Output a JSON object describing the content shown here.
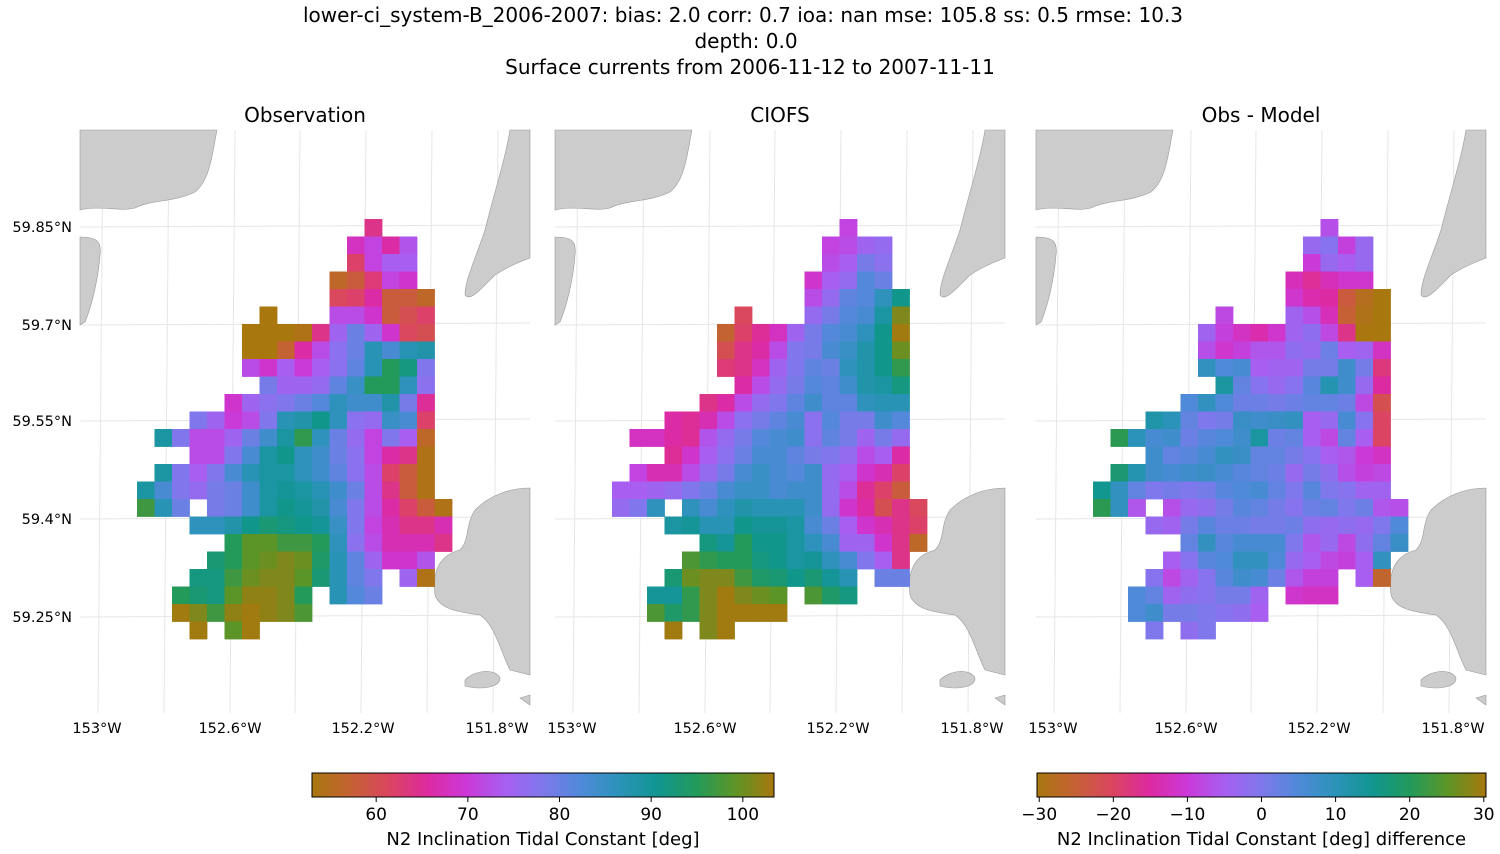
{
  "title": {
    "line1": "lower-ci_system-B_2006-2007: bias: 2.0  corr: 0.7  ioa: nan  mse: 105.8  ss: 0.5  rmse: 10.3",
    "line2": "depth: 0.0",
    "line3": "Surface currents from 2006-11-12 to 2007-11-11"
  },
  "chart_data": [
    {
      "type": "heatmap",
      "title": "Observation",
      "lon_ticks": [
        "153°W",
        "152.6°W",
        "152.2°W",
        "151.8°W"
      ],
      "lat_ticks": [
        "59.85°N",
        "59.7°N",
        "59.55°N",
        "59.4°N",
        "59.25°N"
      ],
      "colorbar": {
        "label": "N2 Inclination Tidal Constant [deg]",
        "ticks": [
          60,
          70,
          80,
          90,
          100
        ],
        "range": [
          53,
          103.4
        ]
      },
      "grid": [
        [
          null,
          null,
          null,
          null,
          null,
          null,
          null,
          null,
          null,
          null,
          null,
          null,
          null,
          64,
          null,
          null,
          null,
          null
        ],
        [
          null,
          null,
          null,
          null,
          null,
          null,
          null,
          null,
          null,
          null,
          null,
          null,
          68,
          71,
          66,
          73,
          null,
          null
        ],
        [
          null,
          null,
          null,
          null,
          null,
          null,
          null,
          null,
          null,
          null,
          null,
          null,
          62,
          71,
          74,
          74,
          null,
          null
        ],
        [
          null,
          null,
          null,
          null,
          null,
          null,
          null,
          null,
          null,
          null,
          null,
          56,
          58,
          63,
          71,
          69,
          null,
          null
        ],
        [
          null,
          null,
          null,
          null,
          null,
          null,
          null,
          null,
          null,
          null,
          null,
          61,
          62,
          66,
          58,
          58,
          56,
          null
        ],
        [
          null,
          null,
          null,
          null,
          null,
          null,
          null,
          53,
          null,
          null,
          null,
          72,
          72,
          69,
          58,
          60,
          62,
          null
        ],
        [
          null,
          null,
          null,
          null,
          null,
          null,
          53,
          53,
          53,
          54,
          64,
          75,
          80,
          75,
          69,
          61,
          60,
          null
        ],
        [
          null,
          null,
          null,
          null,
          null,
          null,
          53,
          53,
          57,
          66,
          72,
          77,
          80,
          87,
          83,
          87,
          88,
          null
        ],
        [
          null,
          null,
          null,
          null,
          null,
          null,
          72,
          69,
          74,
          70,
          74,
          77,
          81,
          87,
          95,
          92,
          78,
          null
        ],
        [
          null,
          null,
          null,
          null,
          null,
          null,
          null,
          79,
          75,
          75,
          76,
          81,
          85,
          95,
          95,
          86,
          77,
          null
        ],
        [
          null,
          null,
          null,
          null,
          null,
          69,
          75,
          77,
          78,
          80,
          82,
          86,
          84,
          84,
          88,
          79,
          65,
          null
        ],
        [
          null,
          null,
          null,
          78,
          75,
          70,
          72,
          78,
          87,
          88,
          91,
          86,
          77,
          76,
          85,
          83,
          62,
          null
        ],
        [
          null,
          89,
          78,
          72,
          72,
          75,
          80,
          84,
          89,
          96,
          86,
          80,
          76,
          71,
          78,
          74,
          56,
          null
        ],
        [
          null,
          null,
          null,
          72,
          72,
          78,
          83,
          89,
          91,
          86,
          84,
          80,
          77,
          71,
          66,
          64,
          54,
          null
        ],
        [
          null,
          89,
          78,
          74,
          78,
          83,
          87,
          89,
          89,
          86,
          84,
          81,
          77,
          72,
          62,
          58,
          54,
          null
        ],
        [
          89,
          83,
          78,
          76,
          79,
          80,
          84,
          89,
          90,
          89,
          87,
          84,
          80,
          72,
          64,
          58,
          54,
          null
        ],
        [
          97,
          87,
          80,
          null,
          79,
          80,
          84,
          89,
          91,
          90,
          88,
          83,
          78,
          72,
          66,
          62,
          58,
          54
        ],
        [
          null,
          null,
          null,
          86,
          86,
          88,
          91,
          93,
          92,
          91,
          90,
          85,
          78,
          71,
          67,
          64,
          64,
          67
        ],
        [
          null,
          null,
          null,
          null,
          null,
          95,
          99,
          99,
          97,
          97,
          95,
          86,
          77,
          72,
          67,
          67,
          67,
          64
        ],
        [
          null,
          null,
          null,
          null,
          93,
          95,
          99,
          100,
          101,
          100,
          94,
          87,
          81,
          75,
          69,
          69,
          73,
          null
        ],
        [
          null,
          null,
          null,
          92,
          92,
          97,
          100,
          101,
          101,
          99,
          93,
          87,
          81,
          78,
          null,
          75,
          54,
          null
        ],
        [
          null,
          null,
          95,
          93,
          92,
          99,
          102,
          102,
          101,
          95,
          null,
          87,
          82,
          80,
          null,
          null,
          null,
          null
        ],
        [
          null,
          null,
          103,
          101,
          97,
          102,
          103,
          102,
          101,
          98,
          null,
          null,
          null,
          null,
          null,
          null,
          null,
          null
        ],
        [
          null,
          null,
          null,
          103,
          null,
          99,
          103,
          null,
          null,
          null,
          null,
          null,
          null,
          null,
          null,
          null,
          null,
          null
        ]
      ]
    },
    {
      "type": "heatmap",
      "title": "CIOFS",
      "lon_ticks": [
        "153°W",
        "152.6°W",
        "152.2°W",
        "151.8°W"
      ],
      "colorbar": {
        "label": "N2 Inclination Tidal Constant [deg]",
        "ticks": [
          60,
          70,
          80,
          90,
          100
        ],
        "range": [
          53,
          103.4
        ]
      },
      "grid": [
        [
          null,
          null,
          null,
          null,
          null,
          null,
          null,
          null,
          null,
          null,
          null,
          null,
          null,
          71,
          null,
          null,
          null,
          null
        ],
        [
          null,
          null,
          null,
          null,
          null,
          null,
          null,
          null,
          null,
          null,
          null,
          null,
          71,
          72,
          75,
          76,
          null,
          null
        ],
        [
          null,
          null,
          null,
          null,
          null,
          null,
          null,
          null,
          null,
          null,
          null,
          null,
          72,
          74,
          79,
          77,
          null,
          null
        ],
        [
          null,
          null,
          null,
          null,
          null,
          null,
          null,
          null,
          null,
          null,
          null,
          69,
          74,
          76,
          82,
          80,
          null,
          null
        ],
        [
          null,
          null,
          null,
          null,
          null,
          null,
          null,
          null,
          null,
          null,
          null,
          72,
          76,
          81,
          82,
          86,
          91,
          null
        ],
        [
          null,
          null,
          null,
          null,
          null,
          null,
          null,
          61,
          null,
          null,
          null,
          76,
          79,
          82,
          83,
          89,
          101,
          null
        ],
        [
          null,
          null,
          null,
          null,
          null,
          null,
          57,
          62,
          65,
          68,
          75,
          79,
          82,
          83,
          86,
          91,
          103,
          null
        ],
        [
          null,
          null,
          null,
          null,
          null,
          null,
          60,
          64,
          66,
          72,
          78,
          79,
          83,
          85,
          88,
          91,
          100,
          null
        ],
        [
          null,
          null,
          null,
          null,
          null,
          null,
          63,
          64,
          68,
          75,
          78,
          81,
          80,
          86,
          88,
          91,
          96,
          null
        ],
        [
          null,
          null,
          null,
          null,
          null,
          null,
          null,
          66,
          72,
          76,
          79,
          82,
          81,
          84,
          88,
          89,
          92,
          null
        ],
        [
          null,
          null,
          null,
          null,
          null,
          64,
          66,
          72,
          76,
          78,
          81,
          84,
          81,
          81,
          86,
          87,
          87,
          null
        ],
        [
          null,
          null,
          null,
          66,
          65,
          67,
          72,
          77,
          79,
          81,
          83,
          77,
          82,
          79,
          79,
          84,
          82,
          null
        ],
        [
          null,
          68,
          68,
          66,
          65,
          73,
          76,
          79,
          82,
          83,
          84,
          77,
          81,
          79,
          75,
          79,
          76,
          null
        ],
        [
          null,
          null,
          null,
          65,
          69,
          74,
          77,
          80,
          83,
          83,
          81,
          79,
          78,
          76,
          72,
          74,
          66,
          null
        ],
        [
          null,
          71,
          67,
          67,
          72,
          76,
          79,
          83,
          85,
          83,
          82,
          84,
          76,
          74,
          69,
          67,
          62,
          null
        ],
        [
          74,
          74,
          75,
          76,
          78,
          80,
          83,
          85,
          85,
          83,
          84,
          84,
          76,
          72,
          65,
          62,
          58,
          null
        ],
        [
          76,
          78,
          86,
          null,
          86,
          83,
          86,
          88,
          87,
          87,
          87,
          84,
          76,
          69,
          66,
          60,
          64,
          61
        ],
        [
          null,
          null,
          null,
          89,
          90,
          87,
          87,
          91,
          90,
          90,
          89,
          83,
          80,
          74,
          69,
          67,
          64,
          62
        ],
        [
          null,
          null,
          null,
          null,
          null,
          92,
          90,
          95,
          91,
          91,
          89,
          86,
          83,
          75,
          75,
          69,
          64,
          56
        ],
        [
          null,
          null,
          null,
          null,
          98,
          96,
          95,
          95,
          92,
          91,
          89,
          90,
          86,
          83,
          78,
          74,
          64,
          null
        ],
        [
          null,
          null,
          null,
          93,
          100,
          101,
          101,
          97,
          94,
          93,
          91,
          93,
          90,
          87,
          null,
          80,
          80,
          null
        ],
        [
          null,
          null,
          90,
          90,
          96,
          101,
          103,
          101,
          100,
          99,
          null,
          98,
          94,
          92,
          null,
          null,
          null,
          null
        ],
        [
          null,
          null,
          98,
          94,
          96,
          101,
          103,
          103,
          103,
          103,
          null,
          null,
          null,
          null,
          null,
          null,
          null,
          null
        ],
        [
          null,
          null,
          null,
          103,
          null,
          101,
          103,
          null,
          null,
          null,
          null,
          null,
          null,
          null,
          null,
          null,
          null,
          null
        ]
      ]
    },
    {
      "type": "heatmap",
      "title": "Obs - Model",
      "lon_ticks": [
        "153°W",
        "152.6°W",
        "152.2°W",
        "151.8°W"
      ],
      "colorbar": {
        "label": "N2 Inclination Tidal Constant [deg] difference",
        "ticks": [
          -30,
          -20,
          -10,
          0,
          10,
          20,
          30
        ],
        "range": [
          -30.3,
          30.3
        ]
      }
    }
  ],
  "colors": {
    "land": "#cccccc",
    "gridline": "#e6e6e6",
    "colormap": [
      "#a8770e",
      "#c56234",
      "#db4560",
      "#dd2aa0",
      "#cc38d8",
      "#a85ef0",
      "#7f78ec",
      "#4e8ad8",
      "#2a93b8",
      "#10968f",
      "#239a5a",
      "#5e9526",
      "#a8770e"
    ]
  }
}
